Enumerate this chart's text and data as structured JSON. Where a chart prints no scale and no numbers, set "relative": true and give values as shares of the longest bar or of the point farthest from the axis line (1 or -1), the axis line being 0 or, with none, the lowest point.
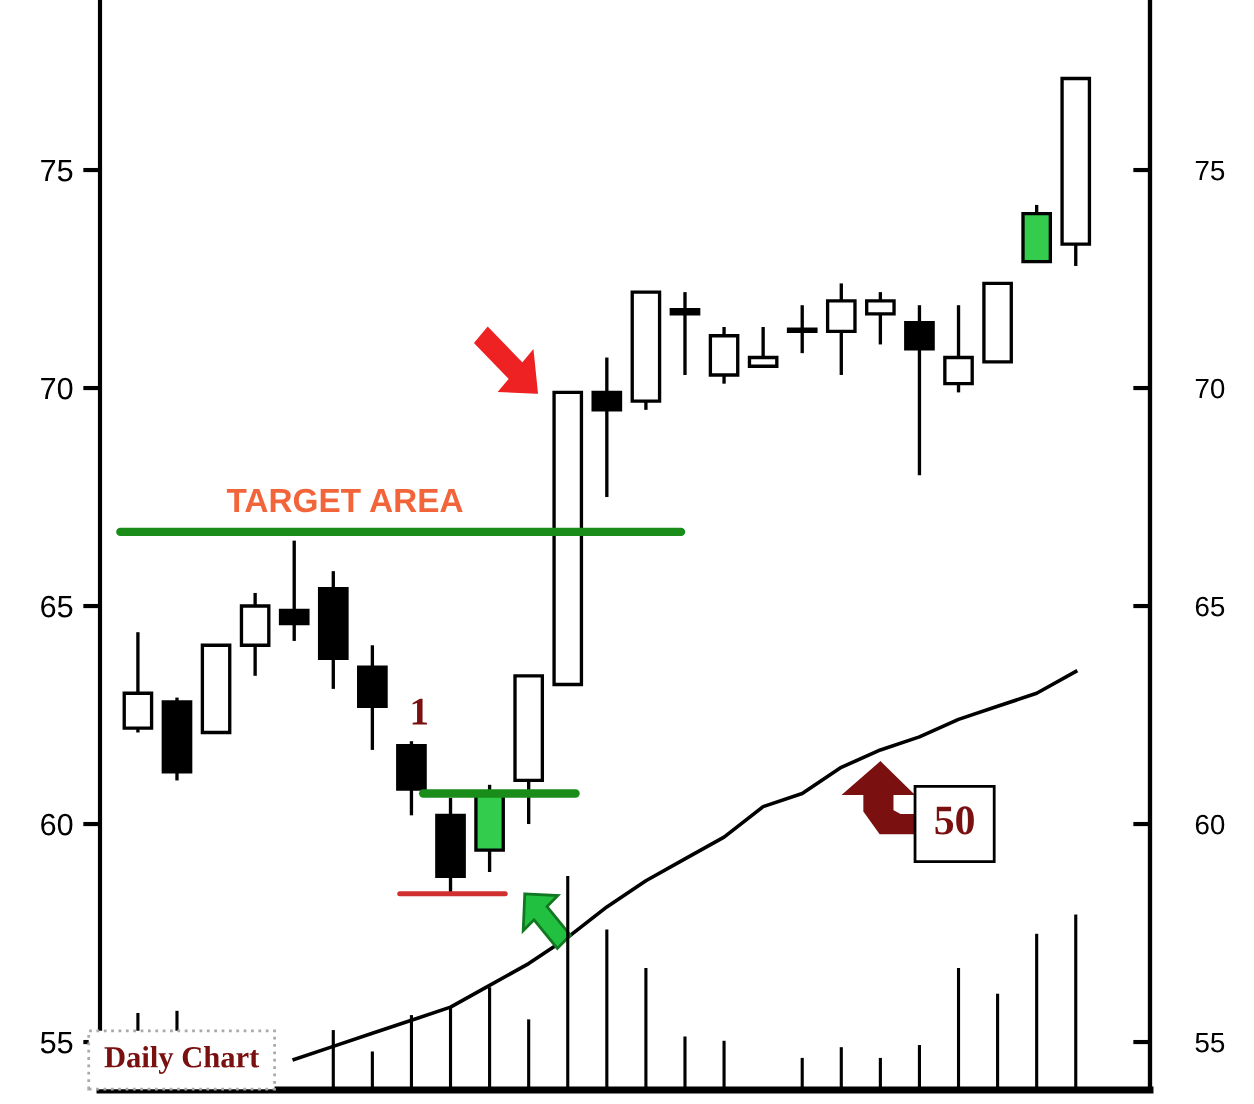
{
  "chart_data": [
    {
      "type": "candlestick",
      "categories": [
        null,
        null,
        null,
        null,
        null,
        null,
        null,
        null,
        null,
        null,
        null,
        null,
        null,
        null,
        null,
        null,
        null,
        null,
        null,
        null,
        null,
        null,
        null,
        null,
        null
      ],
      "ohlc": [
        [
          62.2,
          64.4,
          62.1,
          63.0
        ],
        [
          62.8,
          62.9,
          61.0,
          61.2
        ],
        [
          62.1,
          64.1,
          62.1,
          64.1
        ],
        [
          64.1,
          65.3,
          63.4,
          65.0
        ],
        [
          64.9,
          66.5,
          64.2,
          64.6
        ],
        [
          65.4,
          65.8,
          63.1,
          63.8
        ],
        [
          63.6,
          64.1,
          61.7,
          62.7
        ],
        [
          61.8,
          61.9,
          60.2,
          60.8
        ],
        [
          60.2,
          60.6,
          58.4,
          58.8
        ],
        [
          59.4,
          60.9,
          58.9,
          60.7
        ],
        [
          61.0,
          63.4,
          60.0,
          63.4
        ],
        [
          63.2,
          69.9,
          63.2,
          69.9
        ],
        [
          69.9,
          70.7,
          67.5,
          69.5
        ],
        [
          69.7,
          72.2,
          69.5,
          72.2
        ],
        [
          71.8,
          72.2,
          70.3,
          71.7
        ],
        [
          70.3,
          71.4,
          70.1,
          71.2
        ],
        [
          70.5,
          71.4,
          70.5,
          70.7
        ],
        [
          71.3,
          71.9,
          70.8,
          71.3
        ],
        [
          71.3,
          72.4,
          70.3,
          72.0
        ],
        [
          71.7,
          72.2,
          71.0,
          72.0
        ],
        [
          71.5,
          71.9,
          68.0,
          70.9
        ],
        [
          70.1,
          71.9,
          69.9,
          70.7
        ],
        [
          70.6,
          72.4,
          70.6,
          72.4
        ],
        [
          72.9,
          74.2,
          72.9,
          74.0
        ],
        [
          73.3,
          77.1,
          72.8,
          77.1
        ]
      ],
      "colors": [
        "#ffffff",
        "#000000",
        "#ffffff",
        "#ffffff",
        "#000000",
        "#000000",
        "#000000",
        "#000000",
        "#000000",
        "#33cc4c",
        "#ffffff",
        "#ffffff",
        "#000000",
        "#ffffff",
        "#000000",
        "#ffffff",
        "#ffffff",
        "#ffffff",
        "#ffffff",
        "#ffffff",
        "#000000",
        "#ffffff",
        "#ffffff",
        "#33cc4c",
        "#ffffff"
      ],
      "series": [
        {
          "type": "line",
          "color": "#000000",
          "values": [
            null,
            null,
            null,
            null,
            54.6,
            54.9,
            55.2,
            55.5,
            55.8,
            56.3,
            56.8,
            57.4,
            58.1,
            58.7,
            59.2,
            59.7,
            60.4,
            60.7,
            61.3,
            61.7,
            62.0,
            62.4,
            62.7,
            63.0,
            63.5
          ]
        }
      ],
      "ylim": [
        53.9,
        78.9
      ],
      "yticks": [
        55,
        60,
        65,
        70,
        75
      ],
      "y2lim": [
        53.9,
        78.9
      ],
      "y2ticks": [
        55,
        60,
        65,
        70,
        75
      ],
      "tick_labels": "y",
      "grid": false,
      "ref_lines": [
        {
          "axis": "y",
          "value": 66.7,
          "label": "TARGET AREA",
          "color": "#1a8c1a"
        },
        {
          "axis": "y",
          "value": 60.7,
          "color": "#1a8c1a"
        },
        {
          "axis": "y",
          "value": 58.4,
          "color": "#d03030"
        }
      ],
      "annotations": [
        "1",
        "50",
        "Daily Chart"
      ]
    },
    {
      "type": "bar",
      "relative": true,
      "color": "#000000",
      "tick_labels": false,
      "categories": [
        null,
        null,
        null,
        null,
        null,
        null,
        null,
        null,
        null,
        null,
        null,
        null,
        null,
        null,
        null,
        null,
        null,
        null,
        null,
        null,
        null,
        null,
        null,
        null,
        null
      ],
      "values": [
        0.36,
        0.37,
        null,
        null,
        null,
        0.28,
        0.18,
        0.35,
        0.39,
        0.48,
        0.33,
        1.0,
        0.75,
        0.57,
        0.25,
        0.23,
        0.01,
        0.15,
        0.2,
        0.15,
        0.21,
        0.57,
        0.45,
        0.73,
        0.82
      ]
    }
  ]
}
